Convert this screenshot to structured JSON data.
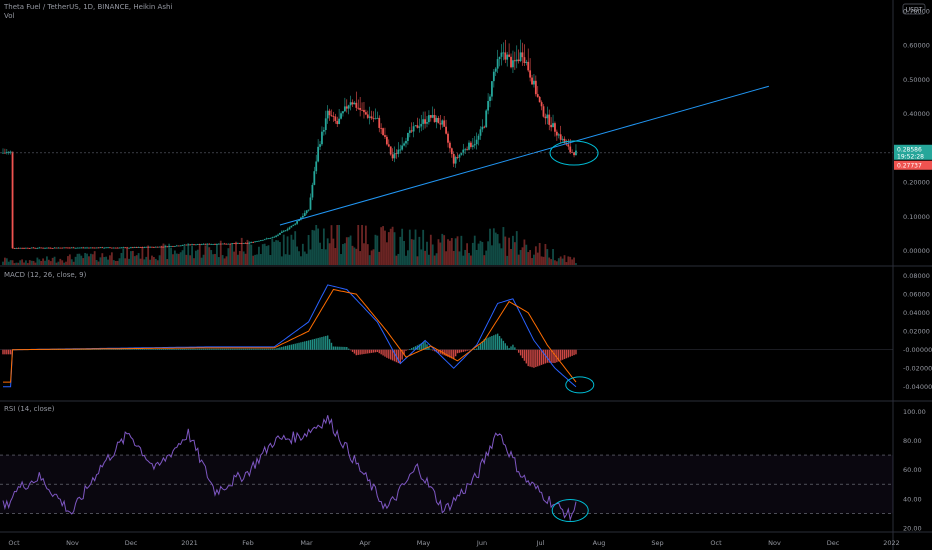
{
  "header": {
    "symbol_line": "Theta Fuel / TetherUS, 1D, BINANCE, Heikin Ashi",
    "vol_label": "Vol",
    "macd_label": "MACD (12, 26, close, 9)",
    "rsi_label": "RSI (14, close)",
    "currency_badge": "USDT"
  },
  "price_tags": {
    "current": "0.28586",
    "countdown": "19:52:28",
    "low": "0.27737"
  },
  "colors": {
    "up": "#26a69a",
    "down": "#ef5350",
    "trendline": "#2196f3",
    "macd": "#2962ff",
    "signal": "#ff6d00",
    "rsi": "#7e57c2",
    "annotation": "#00bcd4"
  },
  "chart_data": [
    {
      "type": "candlestick",
      "title": "Theta Fuel / TetherUS, 1D, BINANCE, Heikin Ashi",
      "ylim": [
        -0.03,
        0.72
      ],
      "yticks": [
        {
          "v": 0.7,
          "label": "0.70000"
        },
        {
          "v": 0.6,
          "label": "0.60000"
        },
        {
          "v": 0.5,
          "label": "0.50000"
        },
        {
          "v": 0.4,
          "label": "0.40000"
        },
        {
          "v": 0.3,
          "label": "0.30000"
        },
        {
          "v": 0.2,
          "label": "0.20000"
        },
        {
          "v": 0.1,
          "label": "0.10000"
        },
        {
          "v": 0.0,
          "label": "0.00000"
        }
      ],
      "xticks": [
        "Oct",
        "Nov",
        "Dec",
        "2021",
        "Feb",
        "Mar",
        "Apr",
        "May",
        "Jun",
        "Jul",
        "Aug",
        "Sep",
        "Oct",
        "Nov",
        "Dec",
        "2022"
      ],
      "close_points": [
        [
          "2020-10-01",
          0.008
        ],
        [
          "2020-11-01",
          0.009
        ],
        [
          "2020-12-01",
          0.009
        ],
        [
          "2020-12-20",
          0.012
        ],
        [
          "2021-01-01",
          0.018
        ],
        [
          "2021-01-15",
          0.02
        ],
        [
          "2021-02-01",
          0.022
        ],
        [
          "2021-02-15",
          0.04
        ],
        [
          "2021-02-25",
          0.075
        ],
        [
          "2021-03-05",
          0.12
        ],
        [
          "2021-03-10",
          0.3
        ],
        [
          "2021-03-15",
          0.4
        ],
        [
          "2021-03-20",
          0.37
        ],
        [
          "2021-03-27",
          0.44
        ],
        [
          "2021-04-03",
          0.4
        ],
        [
          "2021-04-10",
          0.38
        ],
        [
          "2021-04-18",
          0.27
        ],
        [
          "2021-04-25",
          0.33
        ],
        [
          "2021-05-02",
          0.37
        ],
        [
          "2021-05-08",
          0.39
        ],
        [
          "2021-05-14",
          0.37
        ],
        [
          "2021-05-20",
          0.26
        ],
        [
          "2021-05-26",
          0.3
        ],
        [
          "2021-06-01",
          0.32
        ],
        [
          "2021-06-05",
          0.37
        ],
        [
          "2021-06-10",
          0.52
        ],
        [
          "2021-06-15",
          0.58
        ],
        [
          "2021-06-20",
          0.54
        ],
        [
          "2021-06-25",
          0.58
        ],
        [
          "2021-06-30",
          0.5
        ],
        [
          "2021-07-05",
          0.41
        ],
        [
          "2021-07-10",
          0.37
        ],
        [
          "2021-07-15",
          0.33
        ],
        [
          "2021-07-20",
          0.29
        ],
        [
          "2021-07-23",
          0.286
        ]
      ],
      "volume": [
        [
          "2020-10-01",
          0.003
        ],
        [
          "2021-01-01",
          0.015
        ],
        [
          "2021-02-20",
          0.02
        ],
        [
          "2021-03-15",
          0.03
        ],
        [
          "2021-05-20",
          0.02
        ],
        [
          "2021-06-15",
          0.025
        ],
        [
          "2021-07-23",
          0.005
        ]
      ],
      "trendline": {
        "from": [
          "2021-02-18",
          0.075
        ],
        "to": [
          "2021-11-01",
          0.48
        ]
      }
    },
    {
      "type": "line",
      "title": "MACD (12, 26, close, 9)",
      "ylim": [
        -0.05,
        0.085
      ],
      "yticks": [
        {
          "v": 0.08,
          "label": "0.08000"
        },
        {
          "v": 0.06,
          "label": "0.06000"
        },
        {
          "v": 0.04,
          "label": "0.04000"
        },
        {
          "v": 0.02,
          "label": "0.02000"
        },
        {
          "v": 0.0,
          "label": "-0.00000"
        },
        {
          "v": -0.02,
          "label": "-0.02000"
        },
        {
          "v": -0.04,
          "label": "-0.04000"
        }
      ],
      "macd": [
        [
          "2020-10-01",
          0.0
        ],
        [
          "2021-01-10",
          0.003
        ],
        [
          "2021-02-15",
          0.003
        ],
        [
          "2021-03-05",
          0.03
        ],
        [
          "2021-03-15",
          0.07
        ],
        [
          "2021-03-25",
          0.065
        ],
        [
          "2021-04-10",
          0.03
        ],
        [
          "2021-04-22",
          -0.015
        ],
        [
          "2021-05-05",
          0.01
        ],
        [
          "2021-05-20",
          -0.02
        ],
        [
          "2021-06-01",
          0.005
        ],
        [
          "2021-06-12",
          0.05
        ],
        [
          "2021-06-20",
          0.055
        ],
        [
          "2021-07-01",
          0.01
        ],
        [
          "2021-07-12",
          -0.02
        ],
        [
          "2021-07-23",
          -0.04
        ]
      ],
      "signal": [
        [
          "2020-10-01",
          0.0
        ],
        [
          "2021-01-10",
          0.002
        ],
        [
          "2021-02-15",
          0.002
        ],
        [
          "2021-03-05",
          0.02
        ],
        [
          "2021-03-18",
          0.065
        ],
        [
          "2021-03-30",
          0.06
        ],
        [
          "2021-04-15",
          0.02
        ],
        [
          "2021-04-25",
          -0.008
        ],
        [
          "2021-05-08",
          0.004
        ],
        [
          "2021-05-22",
          -0.012
        ],
        [
          "2021-06-05",
          0.01
        ],
        [
          "2021-06-18",
          0.052
        ],
        [
          "2021-06-28",
          0.04
        ],
        [
          "2021-07-08",
          0.005
        ],
        [
          "2021-07-23",
          -0.035
        ]
      ]
    },
    {
      "type": "line",
      "title": "RSI (14, close)",
      "ylim": [
        20,
        105
      ],
      "yticks": [
        {
          "v": 100,
          "label": "100.00"
        },
        {
          "v": 80,
          "label": "80.00"
        },
        {
          "v": 60,
          "label": "60.00"
        },
        {
          "v": 40,
          "label": "40.00"
        },
        {
          "v": 20,
          "label": "20.00"
        }
      ],
      "bands": {
        "upper": 70,
        "middle": 50,
        "lower": 30
      },
      "rsi": [
        [
          "2020-10-01",
          45
        ],
        [
          "2020-10-15",
          55
        ],
        [
          "2020-11-01",
          30
        ],
        [
          "2020-11-15",
          60
        ],
        [
          "2020-12-01",
          85
        ],
        [
          "2020-12-15",
          60
        ],
        [
          "2021-01-01",
          85
        ],
        [
          "2021-01-15",
          45
        ],
        [
          "2021-02-01",
          58
        ],
        [
          "2021-02-15",
          80
        ],
        [
          "2021-03-01",
          83
        ],
        [
          "2021-03-15",
          95
        ],
        [
          "2021-04-01",
          60
        ],
        [
          "2021-04-15",
          33
        ],
        [
          "2021-05-01",
          62
        ],
        [
          "2021-05-15",
          32
        ],
        [
          "2021-06-01",
          55
        ],
        [
          "2021-06-12",
          87
        ],
        [
          "2021-06-25",
          55
        ],
        [
          "2021-07-10",
          38
        ],
        [
          "2021-07-20",
          28
        ],
        [
          "2021-07-23",
          35
        ]
      ]
    }
  ]
}
